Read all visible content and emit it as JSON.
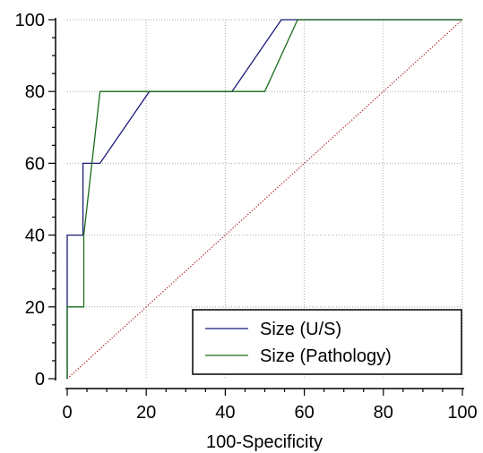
{
  "chart_data": {
    "type": "line",
    "title": "",
    "xlabel": "100-Specificity",
    "ylabel": "",
    "xlim": [
      0,
      100
    ],
    "ylim": [
      0,
      100
    ],
    "x_ticks": [
      0,
      20,
      40,
      60,
      80,
      100
    ],
    "y_ticks": [
      0,
      20,
      40,
      60,
      80,
      100
    ],
    "grid": true,
    "legend_position": "bottom-right",
    "series": [
      {
        "name": "Size (U/S)",
        "color": "#1a1a7a",
        "style": "solid",
        "points": [
          [
            0,
            0
          ],
          [
            0,
            40
          ],
          [
            4,
            40
          ],
          [
            4,
            60
          ],
          [
            8.3,
            60
          ],
          [
            20.8,
            80
          ],
          [
            41.7,
            80
          ],
          [
            54.2,
            100
          ],
          [
            100,
            100
          ]
        ]
      },
      {
        "name": "Size (Pathology)",
        "color": "#1a6b1a",
        "style": "solid",
        "points": [
          [
            0,
            0
          ],
          [
            0,
            20
          ],
          [
            4.2,
            20
          ],
          [
            4.2,
            40
          ],
          [
            8.3,
            80
          ],
          [
            50,
            80
          ],
          [
            58.3,
            100
          ],
          [
            100,
            100
          ]
        ]
      },
      {
        "name": "",
        "color": "#b22222",
        "style": "dotted",
        "points": [
          [
            0,
            0
          ],
          [
            100,
            100
          ]
        ]
      }
    ]
  }
}
